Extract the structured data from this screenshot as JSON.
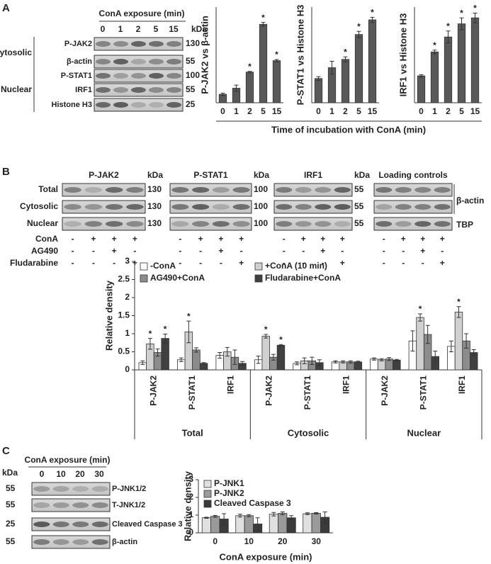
{
  "panel_labels": [
    "A",
    "B",
    "C"
  ],
  "blot_a": {
    "title": "ConA exposure (min)",
    "kda_label": "kDa",
    "lanes": [
      "0",
      "1",
      "2",
      "5",
      "15"
    ],
    "rows": [
      {
        "label": "P-JAK2",
        "kda": 130
      },
      {
        "label": "β-actin",
        "kda": 55
      },
      {
        "label": "P-STAT1",
        "kda": 100
      },
      {
        "label": "IRF1",
        "kda": 55
      },
      {
        "label": "Histone H3",
        "kda": 25
      }
    ],
    "groups": [
      "Cytosolic",
      "Nuclear"
    ]
  },
  "blot_b": {
    "fractions": [
      "Total",
      "Cytosolic",
      "Nuclear"
    ],
    "panels": [
      {
        "title": "P-JAK2",
        "kda_label": "kDa",
        "kda": 130
      },
      {
        "title": "P-STAT1",
        "kda_label": "kDa",
        "kda": 100
      },
      {
        "title": "IRF1",
        "kda_label": "kDa",
        "kda": 55
      },
      {
        "title": "Loading controls",
        "controls": [
          "β-actin",
          "TBP"
        ]
      }
    ],
    "treatments": [
      {
        "name": "ConA",
        "signs": [
          "-",
          "+",
          "+",
          "+"
        ]
      },
      {
        "name": "AG490",
        "signs": [
          "-",
          "-",
          "+",
          "-"
        ]
      },
      {
        "name": "Fludarabine",
        "signs": [
          "-",
          "-",
          "-",
          "+"
        ]
      }
    ]
  },
  "blot_c": {
    "title": "ConA exposure (min)",
    "kda_label": "kDa",
    "lanes": [
      "0",
      "10",
      "20",
      "30"
    ],
    "rows": [
      {
        "label": "P-JNK1/2",
        "kda": 55
      },
      {
        "label": "T-JNK1/2",
        "kda": 55
      },
      {
        "label": "Cleaved Caspase 3",
        "kda": 25
      },
      {
        "label": "β-actin",
        "kda": 55
      }
    ]
  },
  "chart_data": [
    {
      "type": "bar",
      "y_label": "P-JAK2 vs β-actin",
      "categories": [
        "0",
        "1",
        "2",
        "5",
        "15"
      ],
      "values": [
        0.22,
        0.38,
        0.8,
        2.05,
        1.1
      ],
      "errors": [
        0.03,
        0.08,
        0.02,
        0.05,
        0.03
      ],
      "significant": [
        false,
        false,
        true,
        true,
        true
      ],
      "sig_marker": "*",
      "color": "#595959",
      "ylim": [
        0,
        2.5
      ]
    },
    {
      "type": "bar",
      "y_label": "P-STAT1 vs Histone H3",
      "x_label": "Time of incubation with ConA (min)",
      "categories": [
        "0",
        "1",
        "2",
        "5",
        "15"
      ],
      "values": [
        0.38,
        0.55,
        0.68,
        1.07,
        1.3
      ],
      "errors": [
        0.03,
        0.1,
        0.04,
        0.05,
        0.04
      ],
      "significant": [
        false,
        false,
        true,
        true,
        true
      ],
      "sig_marker": "*",
      "color": "#595959",
      "ylim": [
        0,
        1.5
      ]
    },
    {
      "type": "bar",
      "y_label": "IRF1 vs Histone H3",
      "categories": [
        "0",
        "1",
        "2",
        "5",
        "15"
      ],
      "values": [
        0.45,
        0.85,
        1.1,
        1.32,
        1.42
      ],
      "errors": [
        0.02,
        0.03,
        0.1,
        0.1,
        0.08
      ],
      "significant": [
        false,
        true,
        true,
        true,
        true
      ],
      "sig_marker": "*",
      "color": "#595959",
      "ylim": [
        0,
        1.6
      ]
    },
    {
      "type": "bar",
      "y_label": "Relative density",
      "sig_marker": "*",
      "categories": [
        "P-JAK2",
        "P-STAT1",
        "IRF1",
        "P-JAK2",
        "P-STAT1",
        "IRF1",
        "P-JAK2",
        "P-STAT1",
        "IRF1"
      ],
      "group_labels": [
        "Total",
        "Cytosolic",
        "Nuclear"
      ],
      "series": [
        {
          "name": "-ConA",
          "color": "#ffffff",
          "values": [
            0.2,
            0.28,
            0.4,
            0.28,
            0.18,
            0.22,
            0.3,
            0.8,
            0.65
          ],
          "errors": [
            0.05,
            0.05,
            0.08,
            0.1,
            0.04,
            0.03,
            0.03,
            0.28,
            0.15
          ]
        },
        {
          "name": "+ConA (10 min)",
          "color": "#d0d0d0",
          "values": [
            0.72,
            1.05,
            0.5,
            0.93,
            0.25,
            0.22,
            0.28,
            1.45,
            1.6
          ],
          "errors": [
            0.15,
            0.3,
            0.12,
            0.05,
            0.08,
            0.03,
            0.03,
            0.1,
            0.15
          ],
          "significant": [
            true,
            true,
            false,
            true,
            false,
            false,
            false,
            true,
            true
          ]
        },
        {
          "name": "AG490+ConA",
          "color": "#8c8c8c",
          "values": [
            0.48,
            0.55,
            0.35,
            0.35,
            0.25,
            0.22,
            0.3,
            0.98,
            0.8
          ],
          "errors": [
            0.1,
            0.06,
            0.2,
            0.08,
            0.1,
            0.03,
            0.04,
            0.25,
            0.2
          ]
        },
        {
          "name": "Fludarabine+ConA",
          "color": "#404040",
          "values": [
            0.87,
            0.18,
            0.18,
            0.68,
            0.2,
            0.22,
            0.27,
            0.37,
            0.48
          ],
          "errors": [
            0.12,
            0.02,
            0.05,
            0.02,
            0.08,
            0.02,
            0.02,
            0.15,
            0.08
          ],
          "significant": [
            true,
            false,
            false,
            true,
            false,
            false,
            false,
            false,
            false
          ]
        }
      ],
      "ylim": [
        0,
        3
      ],
      "yticks": [
        0,
        0.5,
        1,
        1.5,
        2,
        2.5,
        3
      ]
    },
    {
      "type": "bar",
      "y_label": "Relative density",
      "x_label": "ConA exposure (min)",
      "categories": [
        "0",
        "10",
        "20",
        "30"
      ],
      "series": [
        {
          "name": "P-JNK1",
          "color": "#e0e0e0",
          "values": [
            0.85,
            0.97,
            1.05,
            1.08
          ],
          "errors": [
            0.03,
            0.08,
            0.1,
            0.05
          ]
        },
        {
          "name": "P-JNK2",
          "color": "#9a9a9a",
          "values": [
            0.93,
            0.97,
            1.1,
            1.1
          ],
          "errors": [
            0.05,
            0.06,
            0.08,
            0.04
          ]
        },
        {
          "name": "Cleaved Caspase 3",
          "color": "#3a3a3a",
          "values": [
            0.78,
            0.5,
            0.85,
            0.88
          ],
          "errors": [
            0.3,
            0.35,
            0.12,
            0.3
          ]
        }
      ],
      "ylim": [
        0,
        3
      ],
      "yticks": [
        0,
        1,
        2,
        3
      ]
    }
  ]
}
